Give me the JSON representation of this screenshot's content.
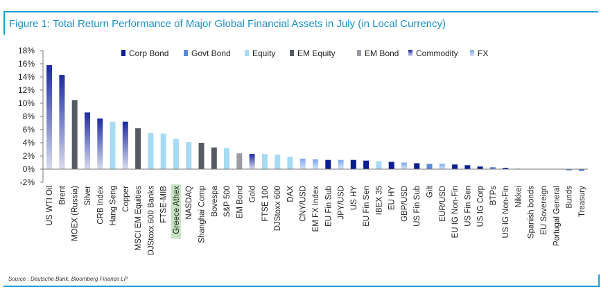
{
  "title": "Figure 1: Total Return Performance of Major Global Financial Assets in July (in Local Currency)",
  "source": "Source : Deutsche Bank, Bloomberg Finance LP",
  "colors": {
    "Corp Bond": "#0a1f8f",
    "Govt Bond": "#5b8ad6",
    "Equity": "#a6dbf3",
    "EM Equity": "#555a63",
    "EM Bond": "#9a9ca3",
    "Commodity": "#1b2a9e",
    "FX": "#7fa8f0",
    "highlight_label_bg": "#c5e3c0"
  },
  "chart_data": {
    "type": "bar",
    "title": "",
    "xlabel": "",
    "ylabel": "",
    "ylim": [
      -2,
      18
    ],
    "y_ticks": [
      "18%",
      "16%",
      "14%",
      "12%",
      "10%",
      "8%",
      "6%",
      "4%",
      "2%",
      "0%",
      "-2%"
    ],
    "legend_position": "top",
    "legend": [
      "Corp Bond",
      "Govt Bond",
      "Equity",
      "EM Equity",
      "EM Bond",
      "Commodity",
      "FX"
    ],
    "grid": false,
    "highlight": "Greece Athex",
    "categories": [
      "US WTI Oil",
      "Brent",
      "MOEX (Russia)",
      "Silver",
      "CRB Index",
      "Hang Seng",
      "Copper",
      "MSCI EM Equities",
      "DJStoxx 600 Banks",
      "FTSE-MIB",
      "Greece Athex",
      "NASDAQ",
      "Shanghai Comp",
      "Bovespa",
      "S&P 500",
      "EM Bond",
      "Gold",
      "FTSE 100",
      "DJStoxx 600",
      "DAX",
      "CNY/USD",
      "EM FX Index",
      "EU Fin Sub",
      "JPY/USD",
      "US HY",
      "EU Fin Sen",
      "IBEX 35",
      "EU HY",
      "GBP/USD",
      "US Fin Sub",
      "Gilt",
      "EUR/USD",
      "EU IG Non-Fin",
      "US Fin Sen",
      "US IG Corp",
      "BTPs",
      "US IG Non-Fin",
      "Nikkei",
      "Spanish bonds",
      "EU Sovereign",
      "Portugal General",
      "Bunds",
      "Treasury"
    ],
    "values": [
      15.8,
      14.3,
      10.5,
      8.6,
      7.7,
      7.2,
      7.2,
      6.2,
      5.5,
      5.4,
      4.6,
      4.1,
      4.0,
      3.3,
      3.2,
      2.4,
      2.3,
      2.3,
      2.2,
      1.9,
      1.6,
      1.5,
      1.4,
      1.4,
      1.4,
      1.3,
      1.2,
      1.1,
      1.0,
      0.9,
      0.8,
      0.8,
      0.7,
      0.6,
      0.4,
      0.3,
      0.2,
      0.1,
      0.05,
      0.05,
      0.05,
      -0.2,
      -0.3
    ],
    "asset_class": [
      "Commodity",
      "Commodity",
      "EM Equity",
      "Commodity",
      "Commodity",
      "Equity",
      "Commodity",
      "EM Equity",
      "Equity",
      "Equity",
      "Equity",
      "Equity",
      "EM Equity",
      "EM Equity",
      "Equity",
      "EM Bond",
      "Commodity",
      "Equity",
      "Equity",
      "Equity",
      "FX",
      "FX",
      "Corp Bond",
      "FX",
      "Corp Bond",
      "Corp Bond",
      "Equity",
      "Corp Bond",
      "FX",
      "Corp Bond",
      "Govt Bond",
      "FX",
      "Corp Bond",
      "Corp Bond",
      "Corp Bond",
      "Govt Bond",
      "Corp Bond",
      "Equity",
      "Govt Bond",
      "Govt Bond",
      "Govt Bond",
      "Govt Bond",
      "Govt Bond"
    ]
  }
}
